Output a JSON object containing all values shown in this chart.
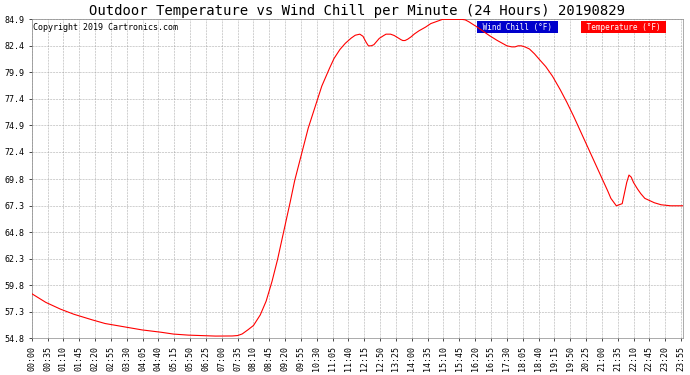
{
  "title": "Outdoor Temperature vs Wind Chill per Minute (24 Hours) 20190829",
  "copyright": "Copyright 2019 Cartronics.com",
  "yticks": [
    54.8,
    57.3,
    59.8,
    62.3,
    64.8,
    67.3,
    69.8,
    72.4,
    74.9,
    77.4,
    79.9,
    82.4,
    84.9
  ],
  "ymin": 54.8,
  "ymax": 84.9,
  "line_color": "#ff0000",
  "background_color": "#ffffff",
  "plot_bg_color": "#ffffff",
  "legend_wind_chill_color": "#0000cc",
  "legend_temp_color": "#ff0000",
  "legend_wind_chill_label": "Wind Chill (°F)",
  "legend_temp_label": "Temperature (°F)",
  "x_tick_interval": 35,
  "total_minutes": 1440,
  "title_fontsize": 10,
  "axis_fontsize": 6.0,
  "copyright_fontsize": 6,
  "keypoints": [
    [
      0,
      59.0
    ],
    [
      30,
      58.2
    ],
    [
      60,
      57.6
    ],
    [
      90,
      57.1
    ],
    [
      120,
      56.7
    ],
    [
      160,
      56.2
    ],
    [
      200,
      55.9
    ],
    [
      240,
      55.6
    ],
    [
      280,
      55.4
    ],
    [
      310,
      55.2
    ],
    [
      340,
      55.1
    ],
    [
      370,
      55.05
    ],
    [
      395,
      55.0
    ],
    [
      420,
      55.0
    ],
    [
      440,
      55.0
    ],
    [
      455,
      55.05
    ],
    [
      465,
      55.2
    ],
    [
      475,
      55.5
    ],
    [
      490,
      56.0
    ],
    [
      505,
      57.0
    ],
    [
      518,
      58.3
    ],
    [
      530,
      60.0
    ],
    [
      542,
      62.0
    ],
    [
      555,
      64.5
    ],
    [
      568,
      67.0
    ],
    [
      580,
      69.5
    ],
    [
      595,
      72.0
    ],
    [
      610,
      74.5
    ],
    [
      625,
      76.5
    ],
    [
      640,
      78.5
    ],
    [
      655,
      80.0
    ],
    [
      668,
      81.2
    ],
    [
      680,
      82.0
    ],
    [
      692,
      82.6
    ],
    [
      705,
      83.1
    ],
    [
      715,
      83.4
    ],
    [
      725,
      83.5
    ],
    [
      732,
      83.3
    ],
    [
      738,
      82.8
    ],
    [
      744,
      82.4
    ],
    [
      750,
      82.4
    ],
    [
      756,
      82.5
    ],
    [
      762,
      82.8
    ],
    [
      768,
      83.1
    ],
    [
      775,
      83.3
    ],
    [
      783,
      83.5
    ],
    [
      793,
      83.5
    ],
    [
      800,
      83.4
    ],
    [
      808,
      83.2
    ],
    [
      815,
      83.0
    ],
    [
      820,
      82.9
    ],
    [
      825,
      82.9
    ],
    [
      830,
      83.0
    ],
    [
      837,
      83.2
    ],
    [
      845,
      83.5
    ],
    [
      855,
      83.8
    ],
    [
      868,
      84.1
    ],
    [
      882,
      84.5
    ],
    [
      895,
      84.7
    ],
    [
      908,
      84.9
    ],
    [
      920,
      84.9
    ],
    [
      930,
      84.9
    ],
    [
      940,
      84.9
    ],
    [
      950,
      84.9
    ],
    [
      958,
      84.85
    ],
    [
      965,
      84.7
    ],
    [
      972,
      84.5
    ],
    [
      980,
      84.3
    ],
    [
      990,
      84.0
    ],
    [
      1000,
      83.7
    ],
    [
      1010,
      83.4
    ],
    [
      1018,
      83.2
    ],
    [
      1025,
      83.0
    ],
    [
      1033,
      82.8
    ],
    [
      1042,
      82.6
    ],
    [
      1050,
      82.4
    ],
    [
      1060,
      82.3
    ],
    [
      1068,
      82.3
    ],
    [
      1075,
      82.4
    ],
    [
      1082,
      82.4
    ],
    [
      1090,
      82.3
    ],
    [
      1100,
      82.1
    ],
    [
      1110,
      81.7
    ],
    [
      1120,
      81.2
    ],
    [
      1135,
      80.5
    ],
    [
      1150,
      79.6
    ],
    [
      1165,
      78.5
    ],
    [
      1180,
      77.3
    ],
    [
      1195,
      76.0
    ],
    [
      1210,
      74.6
    ],
    [
      1225,
      73.2
    ],
    [
      1240,
      71.8
    ],
    [
      1255,
      70.4
    ],
    [
      1268,
      69.2
    ],
    [
      1280,
      68.0
    ],
    [
      1292,
      67.3
    ],
    [
      1305,
      67.5
    ],
    [
      1315,
      69.5
    ],
    [
      1320,
      70.2
    ],
    [
      1325,
      70.0
    ],
    [
      1330,
      69.5
    ],
    [
      1337,
      69.0
    ],
    [
      1345,
      68.5
    ],
    [
      1355,
      68.0
    ],
    [
      1365,
      67.8
    ],
    [
      1375,
      67.6
    ],
    [
      1390,
      67.4
    ],
    [
      1410,
      67.3
    ],
    [
      1430,
      67.3
    ],
    [
      1439,
      67.3
    ]
  ]
}
